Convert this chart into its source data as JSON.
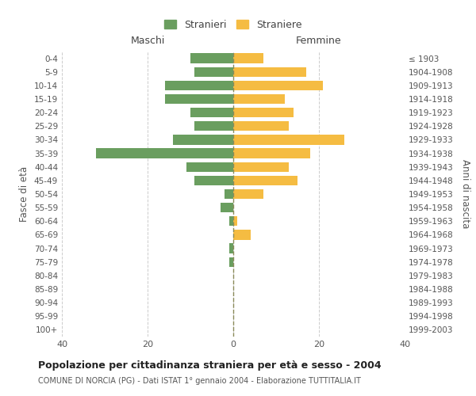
{
  "age_groups": [
    "0-4",
    "5-9",
    "10-14",
    "15-19",
    "20-24",
    "25-29",
    "30-34",
    "35-39",
    "40-44",
    "45-49",
    "50-54",
    "55-59",
    "60-64",
    "65-69",
    "70-74",
    "75-79",
    "80-84",
    "85-89",
    "90-94",
    "95-99",
    "100+"
  ],
  "birth_years": [
    "1999-2003",
    "1994-1998",
    "1989-1993",
    "1984-1988",
    "1979-1983",
    "1974-1978",
    "1969-1973",
    "1964-1968",
    "1959-1963",
    "1954-1958",
    "1949-1953",
    "1944-1948",
    "1939-1943",
    "1934-1938",
    "1929-1933",
    "1924-1928",
    "1919-1923",
    "1914-1918",
    "1909-1913",
    "1904-1908",
    "≤ 1903"
  ],
  "maschi": [
    10,
    9,
    16,
    16,
    10,
    9,
    14,
    32,
    11,
    9,
    2,
    3,
    1,
    0,
    1,
    1,
    0,
    0,
    0,
    0,
    0
  ],
  "femmine": [
    7,
    17,
    21,
    12,
    14,
    13,
    26,
    18,
    13,
    15,
    7,
    0,
    1,
    4,
    0,
    0,
    0,
    0,
    0,
    0,
    0
  ],
  "color_maschi": "#6a9e5f",
  "color_femmine": "#f5bc42",
  "color_dashed_line": "#8b8b5a",
  "xlim": 40,
  "title": "Popolazione per cittadinanza straniera per età e sesso - 2004",
  "subtitle": "COMUNE DI NORCIA (PG) - Dati ISTAT 1° gennaio 2004 - Elaborazione TUTTITALIA.IT",
  "ylabel_left": "Fasce di età",
  "ylabel_right": "Anni di nascita",
  "label_maschi": "Stranieri",
  "label_femmine": "Straniere",
  "header_maschi": "Maschi",
  "header_femmine": "Femmine",
  "background_color": "#ffffff",
  "grid_color": "#cccccc"
}
